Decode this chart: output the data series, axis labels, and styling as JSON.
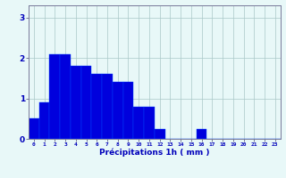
{
  "values": [
    0.5,
    0.9,
    2.1,
    2.1,
    1.8,
    1.8,
    1.6,
    1.6,
    1.4,
    1.4,
    0.8,
    0.8,
    0.25,
    0.0,
    0.0,
    0.0,
    0.25,
    0.0,
    0.0,
    0.0,
    0.0,
    0.0,
    0.0,
    0.0
  ],
  "bar_color": "#0000dd",
  "bar_edge_color": "#0044ff",
  "bg_color": "#e8f8f8",
  "grid_color": "#aac8c8",
  "axis_color": "#777799",
  "xlabel": "Précipitations 1h ( mm )",
  "xlabel_color": "#0000bb",
  "tick_color": "#0000bb",
  "ylim": [
    0,
    3.3
  ],
  "yticks": [
    0,
    1,
    2,
    3
  ],
  "n_bars": 24,
  "figsize": [
    3.2,
    2.0
  ],
  "dpi": 100
}
